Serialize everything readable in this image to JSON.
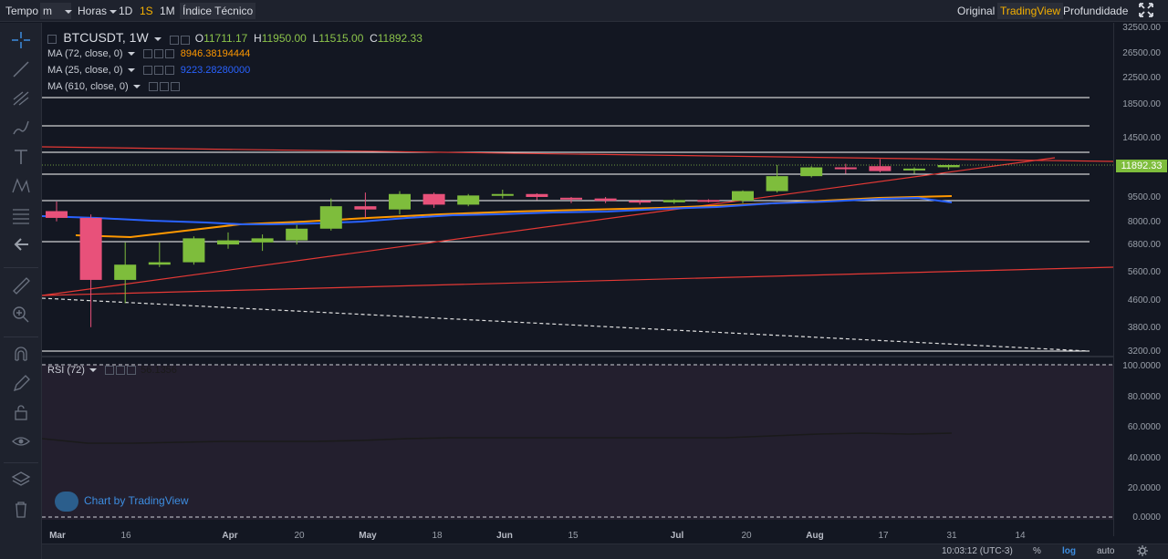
{
  "toolbar": {
    "tempo": "Tempo",
    "interval_value": "m",
    "horas": "Horas",
    "btn_1d": "1D",
    "btn_1s": "1S",
    "btn_1m": "1M",
    "indice": "Índice Técnico",
    "original": "Original",
    "tradingview": "TradingView",
    "profundidade": "Profundidade",
    "fullscreen_icon": "fullscreen-icon"
  },
  "legend": {
    "symbol": "BTCUSDT, 1W",
    "o_label": "O",
    "o_value": "11711.17",
    "h_label": "H",
    "h_value": "11950.00",
    "l_label": "L",
    "l_value": "11515.00",
    "c_label": "C",
    "c_value": "11892.33",
    "ma72_label": "MA (72, close, 0)",
    "ma72_value": "8946.38194444",
    "ma72_color": "#ff9800",
    "ma25_label": "MA (25, close, 0)",
    "ma25_value": "9223.28280000",
    "ma25_color": "#2962ff",
    "ma610_label": "MA (610, close, 0)",
    "rsi_label": "RSI (72)",
    "rsi_value": "56.1356"
  },
  "price_axis": [
    "32500.00",
    "26500.00",
    "22500.00",
    "18500.00",
    "14500.00",
    "9500.00",
    "8000.00",
    "6800.00",
    "5600.00",
    "4600.00",
    "3800.00",
    "3200.00"
  ],
  "current_price": "11892.33",
  "rsi_axis": [
    "100.0000",
    "80.0000",
    "60.0000",
    "40.0000",
    "20.0000",
    "0.0000"
  ],
  "time_axis": [
    {
      "label": "Mar",
      "bold": true
    },
    {
      "label": "16",
      "bold": false
    },
    {
      "label": "Apr",
      "bold": true
    },
    {
      "label": "20",
      "bold": false
    },
    {
      "label": "May",
      "bold": true
    },
    {
      "label": "18",
      "bold": false
    },
    {
      "label": "Jun",
      "bold": true
    },
    {
      "label": "15",
      "bold": false
    },
    {
      "label": "Jul",
      "bold": true
    },
    {
      "label": "20",
      "bold": false
    },
    {
      "label": "Aug",
      "bold": true
    },
    {
      "label": "17",
      "bold": false
    },
    {
      "label": "31",
      "bold": false
    },
    {
      "label": "14",
      "bold": false
    }
  ],
  "status": {
    "time": "10:03:12 (UTC-3)",
    "percent": "%",
    "log": "log",
    "auto": "auto"
  },
  "watermark": "Chart by TradingView",
  "colors": {
    "up": "#7ebd3c",
    "down": "#e8517a",
    "bg": "#131722",
    "rsi_bg": "#231f2e"
  },
  "chart_data": {
    "type": "candlestick",
    "candles": [
      {
        "o": 8600,
        "c": 8200,
        "h": 9200,
        "l": 8000
      },
      {
        "o": 8200,
        "c": 5300,
        "h": 8400,
        "l": 3800
      },
      {
        "o": 5300,
        "c": 5900,
        "h": 6900,
        "l": 4500
      },
      {
        "o": 5900,
        "c": 6000,
        "h": 6900,
        "l": 5800
      },
      {
        "o": 6000,
        "c": 7100,
        "h": 7200,
        "l": 5900
      },
      {
        "o": 6800,
        "c": 7000,
        "h": 7400,
        "l": 6600
      },
      {
        "o": 6900,
        "c": 7100,
        "h": 7300,
        "l": 6500
      },
      {
        "o": 7000,
        "c": 7600,
        "h": 7800,
        "l": 6800
      },
      {
        "o": 7600,
        "c": 8900,
        "h": 9400,
        "l": 7500
      },
      {
        "o": 8900,
        "c": 8700,
        "h": 9800,
        "l": 8200
      },
      {
        "o": 8700,
        "c": 9700,
        "h": 9900,
        "l": 8400
      },
      {
        "o": 9700,
        "c": 9000,
        "h": 9800,
        "l": 8800
      },
      {
        "o": 9000,
        "c": 9600,
        "h": 9700,
        "l": 8900
      },
      {
        "o": 9600,
        "c": 9700,
        "h": 10000,
        "l": 9400
      },
      {
        "o": 9700,
        "c": 9500,
        "h": 9750,
        "l": 9300
      },
      {
        "o": 9450,
        "c": 9350,
        "h": 9500,
        "l": 9100
      },
      {
        "o": 9400,
        "c": 9250,
        "h": 9500,
        "l": 9100
      },
      {
        "o": 9250,
        "c": 9150,
        "h": 9300,
        "l": 9000
      },
      {
        "o": 9150,
        "c": 9300,
        "h": 9350,
        "l": 9050
      },
      {
        "o": 9300,
        "c": 9250,
        "h": 9350,
        "l": 9150
      },
      {
        "o": 9250,
        "c": 9900,
        "h": 9950,
        "l": 9100
      },
      {
        "o": 9900,
        "c": 11000,
        "h": 11900,
        "l": 9800
      },
      {
        "o": 11000,
        "c": 11700,
        "h": 11800,
        "l": 10900
      },
      {
        "o": 11700,
        "c": 11600,
        "h": 12000,
        "l": 11200
      },
      {
        "o": 11800,
        "c": 11400,
        "h": 12400,
        "l": 11300
      },
      {
        "o": 11450,
        "c": 11600,
        "h": 11700,
        "l": 11200
      },
      {
        "o": 11711.17,
        "c": 11892.33,
        "h": 11950,
        "l": 11515
      }
    ]
  }
}
